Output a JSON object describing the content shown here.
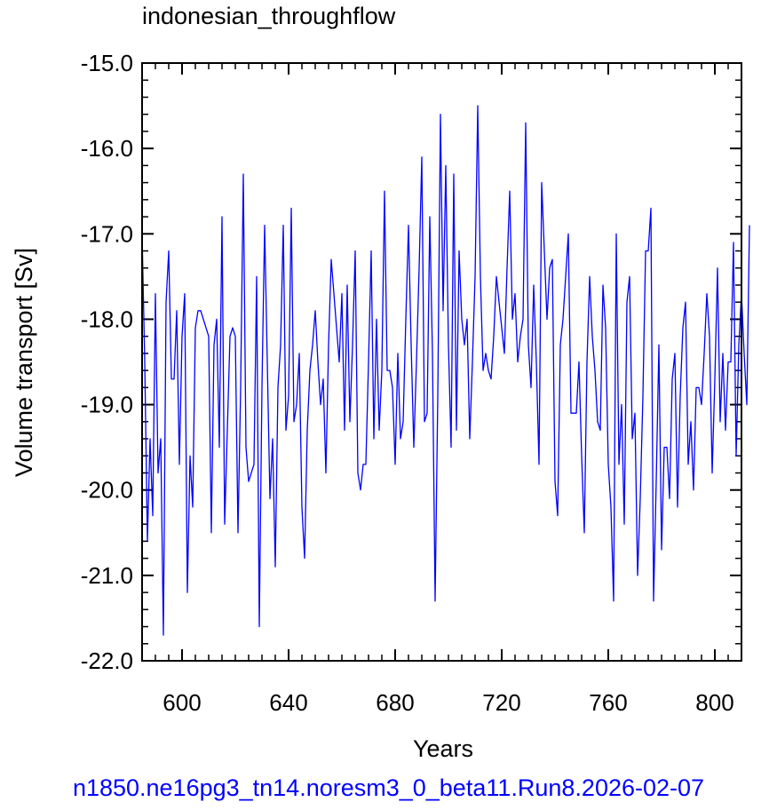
{
  "chart_data": {
    "type": "line",
    "title": "indonesian_throughflow",
    "xlabel": "Years",
    "ylabel": "Volume transport [Sv]",
    "xlim": [
      585,
      810
    ],
    "ylim": [
      -22.0,
      -15.0
    ],
    "xticks": [
      600,
      640,
      680,
      720,
      760,
      800
    ],
    "yticks": [
      -22.0,
      -21.0,
      -20.0,
      -19.0,
      -18.0,
      -17.0,
      -16.0,
      -15.0
    ],
    "ytick_labels": [
      "-22.0",
      "-21.0",
      "-20.0",
      "-19.0",
      "-18.0",
      "-17.0",
      "-16.0",
      "-15.0"
    ],
    "grid": false,
    "series": [
      {
        "color": "#0000ff",
        "x_start": 585,
        "x_step": 1,
        "values": [
          -17.0,
          -18.5,
          -20.6,
          -19.4,
          -20.3,
          -17.7,
          -19.8,
          -19.4,
          -21.7,
          -17.8,
          -17.2,
          -18.7,
          -18.7,
          -17.9,
          -19.7,
          -18.2,
          -17.7,
          -21.2,
          -19.6,
          -20.2,
          -18.1,
          -17.9,
          -17.9,
          -18.0,
          -18.1,
          -18.2,
          -20.5,
          -18.3,
          -18.0,
          -19.5,
          -16.8,
          -20.4,
          -19.3,
          -18.2,
          -18.1,
          -18.2,
          -20.5,
          -18.8,
          -16.3,
          -19.5,
          -19.9,
          -19.8,
          -19.7,
          -17.5,
          -21.6,
          -18.8,
          -16.9,
          -18.5,
          -20.1,
          -19.4,
          -20.9,
          -18.8,
          -18.3,
          -16.9,
          -19.3,
          -18.9,
          -16.7,
          -19.2,
          -19.0,
          -18.4,
          -20.2,
          -20.8,
          -19.3,
          -18.6,
          -18.3,
          -17.9,
          -18.5,
          -19.0,
          -18.7,
          -19.8,
          -18.3,
          -17.3,
          -17.7,
          -18.1,
          -18.5,
          -17.7,
          -19.3,
          -17.6,
          -19.2,
          -18.3,
          -17.2,
          -19.8,
          -20.0,
          -19.7,
          -19.7,
          -18.5,
          -17.2,
          -19.4,
          -18.0,
          -19.3,
          -18.6,
          -16.5,
          -18.6,
          -18.6,
          -18.8,
          -19.7,
          -18.4,
          -19.4,
          -19.2,
          -18.0,
          -16.9,
          -18.3,
          -19.5,
          -18.5,
          -17.4,
          -16.1,
          -19.2,
          -19.1,
          -16.8,
          -18.4,
          -21.3,
          -18.9,
          -15.6,
          -17.9,
          -16.2,
          -18.3,
          -19.5,
          -16.3,
          -19.3,
          -17.2,
          -18.0,
          -18.3,
          -18.0,
          -19.4,
          -18.5,
          -17.5,
          -15.5,
          -17.5,
          -18.6,
          -18.4,
          -18.6,
          -18.7,
          -18.2,
          -17.5,
          -17.8,
          -18.1,
          -18.4,
          -17.4,
          -16.5,
          -18.0,
          -17.7,
          -18.5,
          -18.2,
          -18.0,
          -15.7,
          -18.3,
          -18.8,
          -17.6,
          -18.5,
          -19.7,
          -16.4,
          -17.2,
          -18.0,
          -17.4,
          -17.3,
          -19.9,
          -20.3,
          -18.3,
          -18.0,
          -17.5,
          -17.0,
          -19.1,
          -19.1,
          -19.1,
          -18.5,
          -19.6,
          -20.5,
          -18.5,
          -17.5,
          -18.2,
          -18.6,
          -19.2,
          -19.3,
          -17.6,
          -18.1,
          -19.7,
          -20.2,
          -21.3,
          -17.0,
          -19.7,
          -19.0,
          -20.4,
          -17.8,
          -17.5,
          -19.4,
          -19.1,
          -21.0,
          -20.1,
          -18.9,
          -17.2,
          -17.2,
          -16.7,
          -21.3,
          -19.9,
          -18.3,
          -20.7,
          -19.5,
          -19.5,
          -20.1,
          -18.7,
          -18.4,
          -20.2,
          -18.9,
          -18.1,
          -17.8,
          -19.7,
          -19.2,
          -20.0,
          -18.8,
          -18.8,
          -19.0,
          -18.4,
          -17.7,
          -18.2,
          -19.8,
          -18.7,
          -17.4,
          -19.2,
          -18.4,
          -19.3,
          -18.5,
          -18.5,
          -17.1,
          -19.6,
          -18.3,
          -17.7,
          -18.4,
          -19.0,
          -16.9
        ]
      }
    ]
  },
  "footer": {
    "caption": "n1850.ne16pg3_tn14.noresm3_0_beta11.Run8.2026-02-07"
  }
}
